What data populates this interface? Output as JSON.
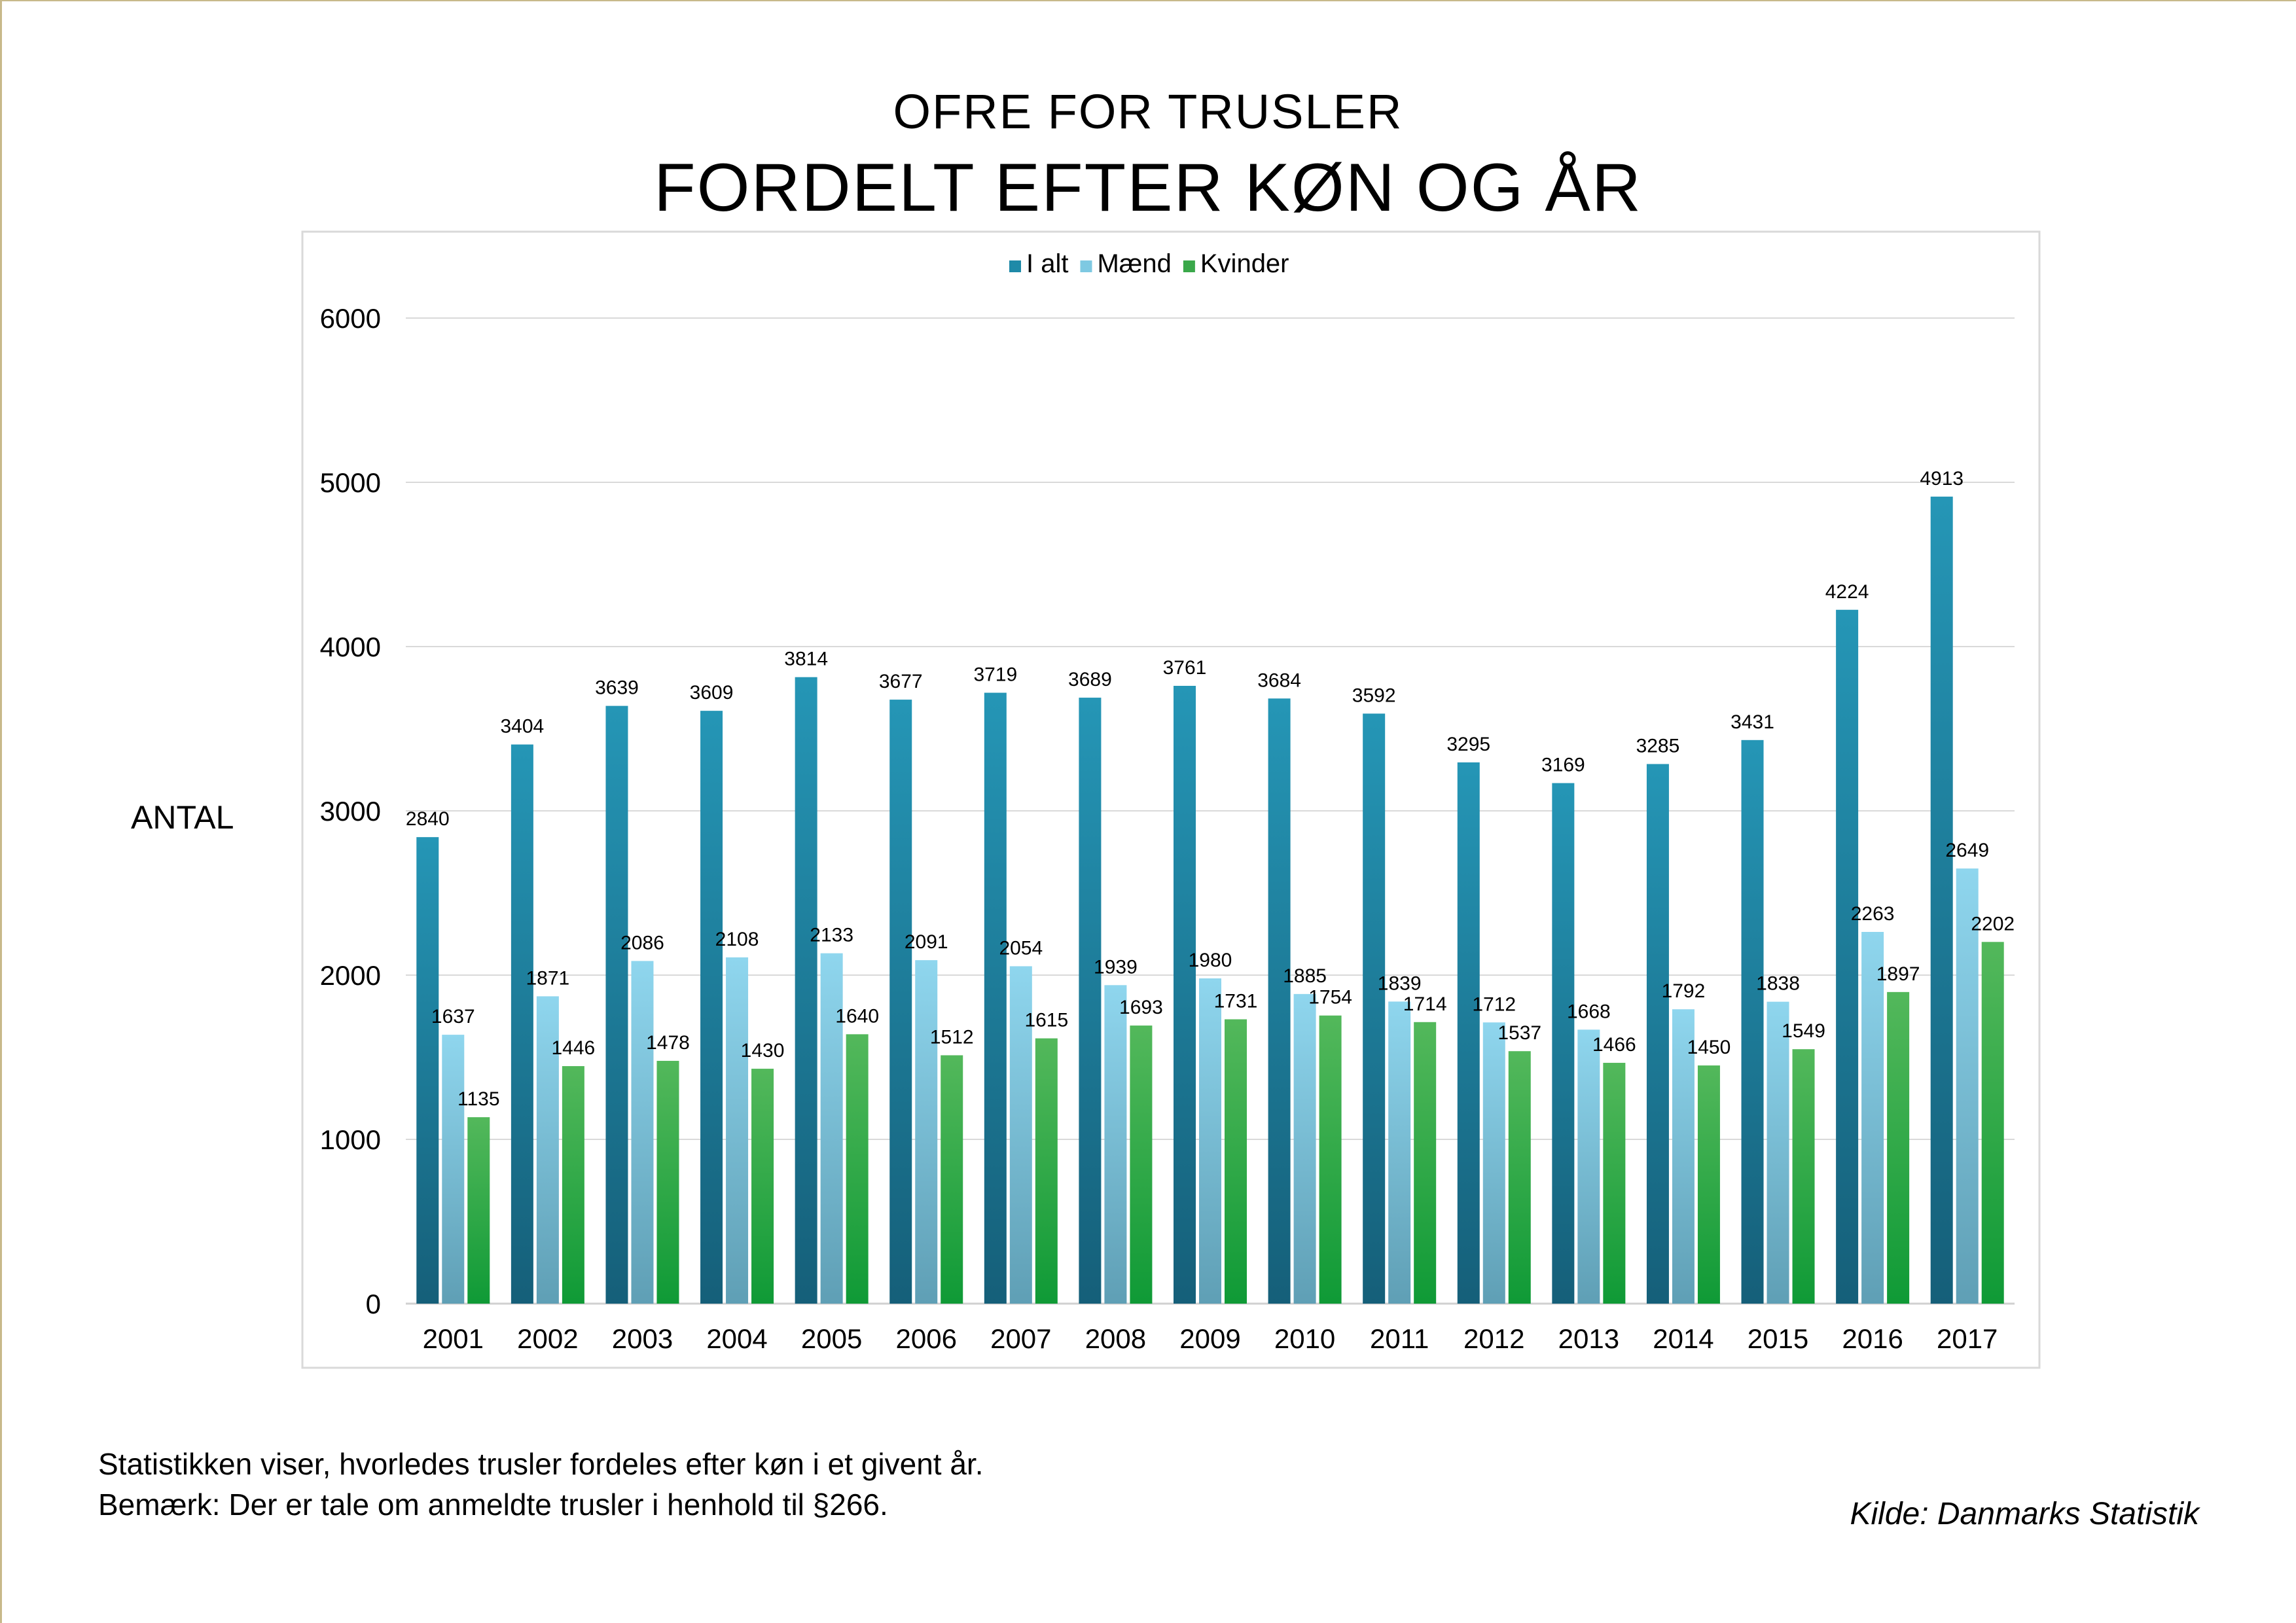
{
  "title": "OFRE FOR TRUSLER",
  "subtitle": "FORDELT EFTER KØN OG ÅR",
  "notes": {
    "line1": "Statistikken viser, hvorledes trusler fordeles efter køn i et givent år.",
    "line2": "Bemærk: Der er tale om anmeldte trusler i henhold til §266."
  },
  "source": "Kilde: Danmarks Statistik",
  "colors": {
    "i_alt": "#1f8aa8",
    "maend": "#7ec9e2",
    "kvinder": "#3aa84a",
    "grid": "#d9d9d9"
  },
  "chart_data": {
    "type": "bar",
    "title": "OFRE FOR TRUSLER",
    "subtitle": "FORDELT EFTER KØN OG ÅR",
    "xlabel": "",
    "ylabel": "ANTAL",
    "ylim": [
      0,
      6000
    ],
    "yticks": [
      0,
      1000,
      2000,
      3000,
      4000,
      5000,
      6000
    ],
    "grid": true,
    "legend": "top-center",
    "categories": [
      "2001",
      "2002",
      "2003",
      "2004",
      "2005",
      "2006",
      "2007",
      "2008",
      "2009",
      "2010",
      "2011",
      "2012",
      "2013",
      "2014",
      "2015",
      "2016",
      "2017"
    ],
    "series": [
      {
        "name": "I alt",
        "values": [
          2840,
          3404,
          3639,
          3609,
          3814,
          3677,
          3719,
          3689,
          3761,
          3684,
          3592,
          3295,
          3169,
          3285,
          3431,
          4224,
          4913
        ]
      },
      {
        "name": "Mænd",
        "values": [
          1637,
          1871,
          2086,
          2108,
          2133,
          2091,
          2054,
          1939,
          1980,
          1885,
          1839,
          1712,
          1668,
          1792,
          1838,
          2263,
          2649
        ]
      },
      {
        "name": "Kvinder",
        "values": [
          1135,
          1446,
          1478,
          1430,
          1640,
          1512,
          1615,
          1693,
          1731,
          1754,
          1714,
          1537,
          1466,
          1450,
          1549,
          1897,
          2202
        ]
      }
    ]
  }
}
